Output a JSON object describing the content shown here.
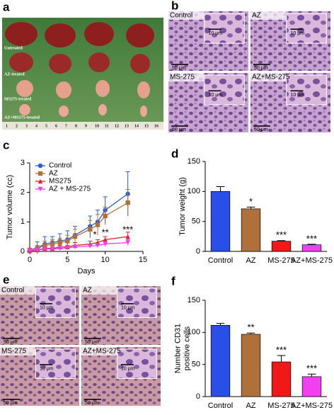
{
  "panel_letters": [
    "a",
    "b",
    "c",
    "d",
    "e",
    "f"
  ],
  "photo_a": {
    "row_labels": [
      "Untreated",
      "AZ-treated",
      "MS275-treated",
      "AZ+MS275-treated"
    ],
    "ruler": [
      "1",
      "2",
      "3",
      "4",
      "5",
      "6",
      "7",
      "8",
      "9",
      "10",
      "11",
      "12",
      "13",
      "14",
      "15",
      "16"
    ]
  },
  "micrographs_b": {
    "labels": [
      "Control",
      "AZ",
      "MS-275",
      "AZ+MS-275"
    ],
    "scale_bar": "50 μm",
    "inset_scale": "10 μm"
  },
  "micrographs_e": {
    "labels": [
      "Control",
      "AZ",
      "MS-275",
      "AZ+MS-275"
    ],
    "scale_bar": "50 μm",
    "inset_scale": "10 μm"
  },
  "chart_data": [
    {
      "type": "line",
      "x_label": "Days",
      "y_label": "Tumor volume (cc)",
      "x": [
        0,
        1,
        2,
        3,
        4,
        5,
        6,
        8,
        9,
        10,
        13
      ],
      "xlim": [
        0,
        15
      ],
      "xticks": [
        0,
        5,
        10,
        15
      ],
      "ylim": [
        0,
        3
      ],
      "yticks": [
        0,
        1,
        2,
        3
      ],
      "legend": "upper-left",
      "series": [
        {
          "name": "Control",
          "color": "#2a5cd8",
          "marker": "circle",
          "values": [
            0.05,
            0.12,
            0.25,
            0.3,
            0.35,
            0.4,
            0.55,
            0.85,
            1.0,
            1.4,
            1.95
          ],
          "errors": [
            0.05,
            0.2,
            0.25,
            0.2,
            0.25,
            0.3,
            0.3,
            0.35,
            0.4,
            0.45,
            0.75
          ]
        },
        {
          "name": "AZ",
          "color": "#b0703a",
          "marker": "square",
          "values": [
            0.05,
            0.1,
            0.2,
            0.25,
            0.3,
            0.35,
            0.5,
            0.75,
            0.9,
            1.2,
            1.65
          ],
          "errors": [
            0.05,
            0.1,
            0.15,
            0.15,
            0.15,
            0.2,
            0.25,
            0.3,
            0.35,
            0.3,
            0.45
          ]
        },
        {
          "name": "MS275",
          "color": "#e0202a",
          "marker": "triangle",
          "values": [
            0.02,
            0.05,
            0.1,
            0.1,
            0.15,
            0.15,
            0.2,
            0.25,
            0.3,
            0.4,
            0.5
          ],
          "errors": [
            0.02,
            0.05,
            0.05,
            0.05,
            0.05,
            0.05,
            0.1,
            0.1,
            0.1,
            0.1,
            0.15
          ]
        },
        {
          "name": "AZ + MS-275",
          "color": "#f03cf0",
          "marker": "down-triangle",
          "values": [
            0.02,
            0.04,
            0.08,
            0.08,
            0.1,
            0.12,
            0.15,
            0.18,
            0.2,
            0.25,
            0.3
          ],
          "errors": [
            0.02,
            0.03,
            0.04,
            0.04,
            0.05,
            0.05,
            0.05,
            0.05,
            0.05,
            0.08,
            0.1
          ]
        }
      ],
      "annotations": [
        "*",
        "**",
        "***"
      ]
    },
    {
      "type": "bar",
      "y_label": [
        "Tumor weight (g)"
      ],
      "categories": [
        "Control",
        "AZ",
        "MS-275",
        "AZ+MS-275"
      ],
      "values": [
        100,
        71,
        17,
        11
      ],
      "errors": [
        8,
        3,
        1,
        1
      ],
      "colors": [
        "#2a4ee8",
        "#b0703a",
        "#f01818",
        "#f040f0"
      ],
      "significance": [
        null,
        "*",
        "***",
        "***"
      ],
      "ylim": [
        0,
        150
      ],
      "yticks": [
        0,
        50,
        100,
        150
      ]
    },
    {
      "type": "bar",
      "y_label": [
        "Number CD31",
        "positive cells"
      ],
      "categories": [
        "Control",
        "AZ",
        "MS-275",
        "AZ+MS-275"
      ],
      "values": [
        111,
        97,
        54,
        31
      ],
      "errors": [
        3,
        2,
        10,
        4
      ],
      "colors": [
        "#2a4ee8",
        "#b0703a",
        "#f01818",
        "#f040f0"
      ],
      "significance": [
        null,
        "**",
        "***",
        "***"
      ],
      "ylim": [
        0,
        150
      ],
      "yticks": [
        0,
        50,
        100,
        150
      ]
    }
  ]
}
